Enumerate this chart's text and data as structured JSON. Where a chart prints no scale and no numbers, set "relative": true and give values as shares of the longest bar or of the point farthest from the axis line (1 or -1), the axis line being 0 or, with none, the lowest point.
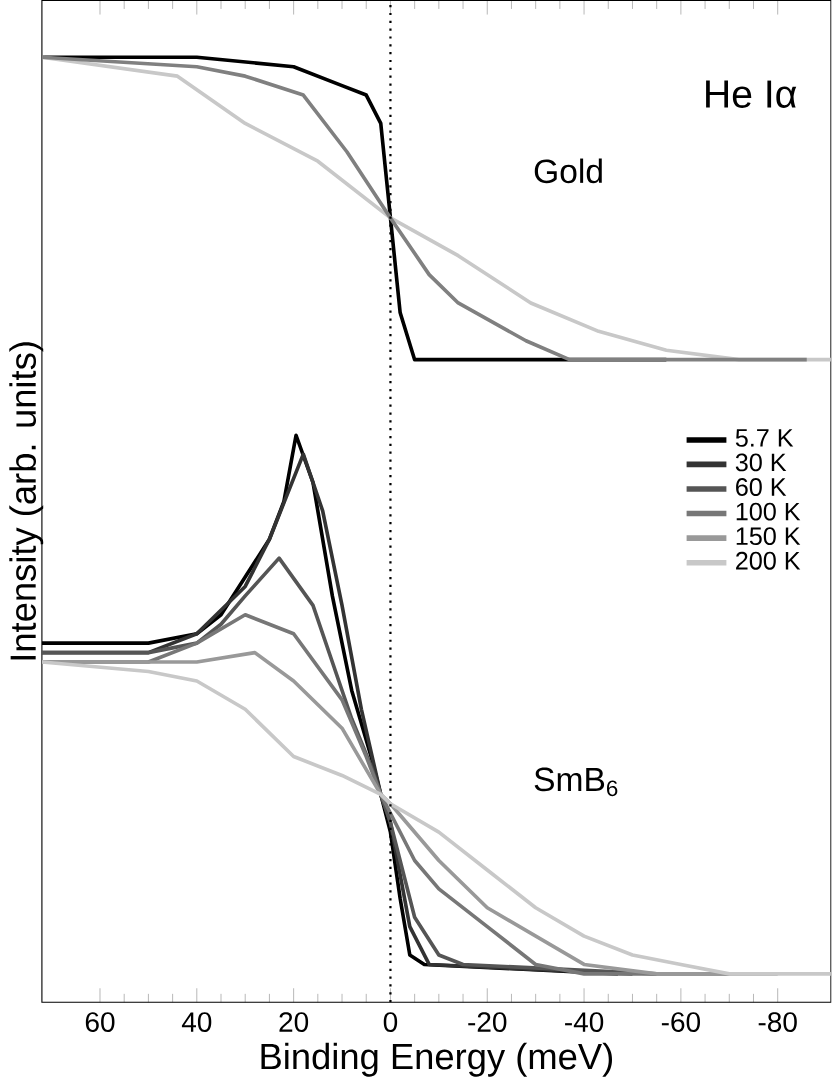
{
  "chart_data": {
    "type": "line",
    "relative": true,
    "xlabel": "Binding Energy (meV)",
    "ylabel": "Intensity (arb. units)",
    "xlim": [
      72,
      -91
    ],
    "xticks": [
      60,
      40,
      20,
      0,
      -20,
      -40,
      -60,
      -80
    ],
    "legend": "right",
    "marker": "none",
    "line_style": "solid",
    "series": [
      {
        "color": "#000000",
        "x": [
          72,
          40,
          20,
          10,
          5,
          2,
          0,
          -2,
          -5,
          -57
        ],
        "values": [
          1.0,
          1.0,
          0.99,
          0.97,
          0.96,
          0.93,
          0.83,
          0.73,
          0.68,
          0.68
        ]
      },
      {
        "color": "#c8c8c8",
        "x": [
          72,
          44,
          30,
          15,
          0,
          -14,
          -29,
          -43,
          -57,
          -72,
          -91
        ],
        "values": [
          1.0,
          0.98,
          0.93,
          0.89,
          0.83,
          0.79,
          0.74,
          0.71,
          0.69,
          0.68,
          0.68
        ]
      },
      {
        "color": "#808080",
        "x": [
          72,
          40,
          30,
          18,
          9,
          0,
          -8,
          -14,
          -28,
          -37,
          -86
        ],
        "values": [
          1.0,
          0.99,
          0.98,
          0.96,
          0.9,
          0.83,
          0.77,
          0.74,
          0.7,
          0.68,
          0.68
        ]
      },
      {
        "name": "5.7 K",
        "color": "#000000",
        "x": [
          72,
          60,
          50,
          40,
          35,
          30,
          25,
          22,
          19.5,
          16,
          12,
          8,
          4,
          2,
          0,
          -2,
          -4,
          -7,
          -47
        ],
        "values": [
          0.38,
          0.38,
          0.38,
          0.39,
          0.41,
          0.45,
          0.49,
          0.53,
          0.6,
          0.55,
          0.43,
          0.33,
          0.26,
          0.22,
          0.18,
          0.11,
          0.05,
          0.04,
          0.03
        ]
      },
      {
        "name": "30 K",
        "color": "#333333",
        "x": [
          72,
          50,
          40,
          30,
          25,
          18,
          14,
          10,
          6,
          2,
          0,
          -4,
          -8,
          -50
        ],
        "values": [
          0.37,
          0.37,
          0.39,
          0.44,
          0.49,
          0.58,
          0.52,
          0.42,
          0.31,
          0.22,
          0.19,
          0.08,
          0.04,
          0.03
        ]
      },
      {
        "name": "60 K",
        "color": "#555555",
        "x": [
          72,
          50,
          40,
          35,
          30,
          23,
          16,
          12,
          8,
          4,
          2,
          0,
          -5,
          -10,
          -15,
          -55
        ],
        "values": [
          0.37,
          0.37,
          0.38,
          0.4,
          0.43,
          0.47,
          0.42,
          0.36,
          0.3,
          0.25,
          0.22,
          0.19,
          0.09,
          0.05,
          0.04,
          0.03
        ]
      },
      {
        "name": "100 K",
        "color": "#777777",
        "x": [
          72,
          50,
          40,
          30,
          20,
          10,
          5,
          2,
          0,
          -5,
          -10,
          -20,
          -30,
          -40,
          -70
        ],
        "values": [
          0.36,
          0.36,
          0.38,
          0.41,
          0.39,
          0.32,
          0.26,
          0.22,
          0.2,
          0.15,
          0.12,
          0.08,
          0.04,
          0.03,
          0.03
        ]
      },
      {
        "name": "150 K",
        "color": "#999999",
        "x": [
          72,
          40,
          28,
          20,
          10,
          2,
          0,
          -10,
          -20,
          -30,
          -40,
          -55,
          -80
        ],
        "values": [
          0.36,
          0.36,
          0.37,
          0.34,
          0.29,
          0.22,
          0.21,
          0.15,
          0.1,
          0.07,
          0.04,
          0.03,
          0.03
        ]
      },
      {
        "name": "200 K",
        "color": "#c8c8c8",
        "x": [
          72,
          50,
          40,
          30,
          20,
          10,
          2,
          0,
          -10,
          -20,
          -30,
          -40,
          -50,
          -60,
          -70,
          -91
        ],
        "values": [
          0.36,
          0.35,
          0.34,
          0.31,
          0.26,
          0.24,
          0.22,
          0.21,
          0.18,
          0.14,
          0.1,
          0.07,
          0.05,
          0.04,
          0.03,
          0.03
        ]
      }
    ],
    "ref_lines": [
      {
        "axis": "x",
        "value": 0,
        "line_style": "dotted",
        "color": "#000000"
      }
    ],
    "annotations": [
      "He Iα",
      "Gold",
      "SmB$_{6}$"
    ]
  }
}
